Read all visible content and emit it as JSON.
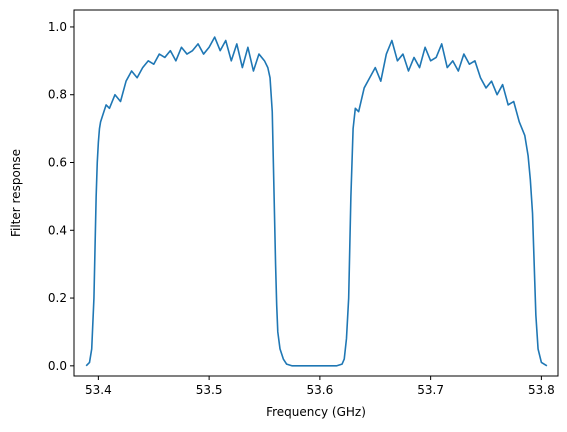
{
  "chart_data": {
    "type": "line",
    "xlabel": "Frequency (GHz)",
    "ylabel": "Filter response",
    "xlim": [
      53.378,
      53.815
    ],
    "ylim": [
      -0.03,
      1.05
    ],
    "x_ticks": [
      53.4,
      53.5,
      53.6,
      53.7,
      53.8
    ],
    "x_tick_labels": [
      "53.4",
      "53.5",
      "53.6",
      "53.7",
      "53.8"
    ],
    "y_ticks": [
      0.0,
      0.2,
      0.4,
      0.6,
      0.8,
      1.0
    ],
    "y_tick_labels": [
      "0.0",
      "0.2",
      "0.4",
      "0.6",
      "0.8",
      "1.0"
    ],
    "grid": false,
    "series": [
      {
        "color": "#1f77b4",
        "x": [
          53.389,
          53.392,
          53.394,
          53.396,
          53.397,
          53.398,
          53.399,
          53.4,
          53.401,
          53.402,
          53.404,
          53.407,
          53.41,
          53.415,
          53.42,
          53.425,
          53.43,
          53.435,
          53.44,
          53.445,
          53.45,
          53.455,
          53.46,
          53.465,
          53.47,
          53.475,
          53.48,
          53.485,
          53.49,
          53.495,
          53.5,
          53.505,
          53.51,
          53.515,
          53.52,
          53.525,
          53.53,
          53.535,
          53.54,
          53.545,
          53.55,
          53.553,
          53.555,
          53.557,
          53.558,
          53.559,
          53.56,
          53.561,
          53.562,
          53.564,
          53.567,
          53.57,
          53.575,
          53.58,
          53.6,
          53.615,
          53.62,
          53.622,
          53.624,
          53.626,
          53.627,
          53.628,
          53.629,
          53.63,
          53.632,
          53.635,
          53.64,
          53.645,
          53.65,
          53.655,
          53.66,
          53.665,
          53.67,
          53.675,
          53.68,
          53.685,
          53.69,
          53.695,
          53.7,
          53.705,
          53.71,
          53.715,
          53.72,
          53.725,
          53.73,
          53.735,
          53.74,
          53.745,
          53.75,
          53.755,
          53.76,
          53.765,
          53.77,
          53.775,
          53.78,
          53.785,
          53.788,
          53.79,
          53.792,
          53.793,
          53.794,
          53.795,
          53.797,
          53.8,
          53.805
        ],
        "y": [
          0.0,
          0.01,
          0.05,
          0.2,
          0.35,
          0.5,
          0.6,
          0.66,
          0.7,
          0.72,
          0.74,
          0.77,
          0.76,
          0.8,
          0.78,
          0.84,
          0.87,
          0.85,
          0.88,
          0.9,
          0.89,
          0.92,
          0.91,
          0.93,
          0.9,
          0.94,
          0.92,
          0.93,
          0.95,
          0.92,
          0.94,
          0.97,
          0.93,
          0.96,
          0.9,
          0.95,
          0.88,
          0.94,
          0.87,
          0.92,
          0.9,
          0.88,
          0.85,
          0.75,
          0.6,
          0.45,
          0.3,
          0.18,
          0.1,
          0.05,
          0.02,
          0.005,
          0.0,
          0.0,
          0.0,
          0.0,
          0.005,
          0.02,
          0.08,
          0.2,
          0.35,
          0.5,
          0.6,
          0.7,
          0.76,
          0.75,
          0.82,
          0.85,
          0.88,
          0.84,
          0.92,
          0.96,
          0.9,
          0.92,
          0.87,
          0.91,
          0.88,
          0.94,
          0.9,
          0.91,
          0.95,
          0.88,
          0.9,
          0.87,
          0.92,
          0.89,
          0.9,
          0.85,
          0.82,
          0.84,
          0.8,
          0.83,
          0.77,
          0.78,
          0.72,
          0.68,
          0.62,
          0.55,
          0.45,
          0.35,
          0.25,
          0.15,
          0.05,
          0.01,
          0.0
        ]
      }
    ]
  }
}
